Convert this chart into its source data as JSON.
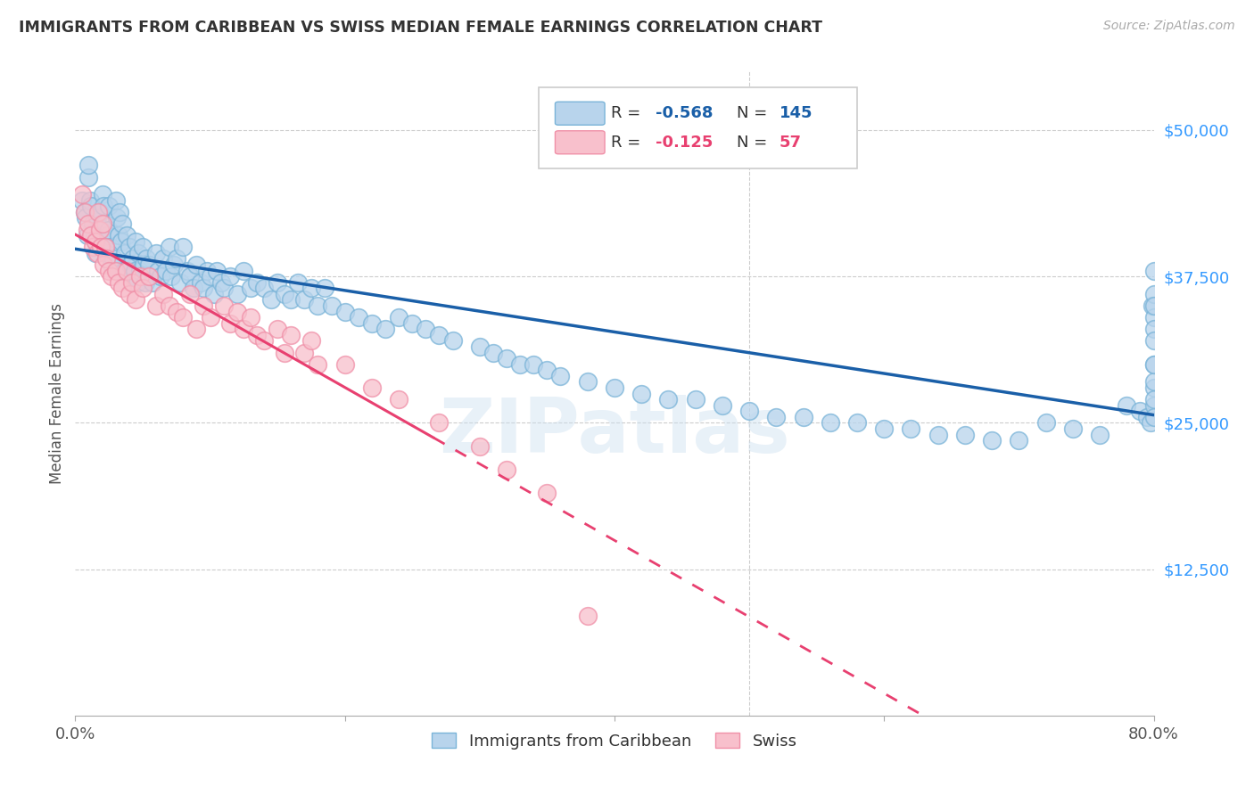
{
  "title": "IMMIGRANTS FROM CARIBBEAN VS SWISS MEDIAN FEMALE EARNINGS CORRELATION CHART",
  "source": "Source: ZipAtlas.com",
  "ylabel": "Median Female Earnings",
  "yticks": [
    0,
    12500,
    25000,
    37500,
    50000
  ],
  "ytick_labels": [
    "",
    "$12,500",
    "$25,000",
    "$37,500",
    "$50,000"
  ],
  "legend_label1": "Immigrants from Caribbean",
  "legend_label2": "Swiss",
  "blue_color": "#7ab4d8",
  "blue_fill": "#b8d4ec",
  "pink_color": "#f090a8",
  "pink_fill": "#f8c0cc",
  "line_blue": "#1a5fa8",
  "line_pink": "#e84070",
  "title_color": "#333333",
  "axis_label_color": "#3399ff",
  "watermark": "ZIPatlas",
  "xmin": 0.0,
  "xmax": 0.8,
  "ymin": 0,
  "ymax": 55000,
  "blue_R": "-0.568",
  "blue_N": "145",
  "pink_R": "-0.125",
  "pink_N": "57",
  "blue_scatter_x": [
    0.005,
    0.007,
    0.008,
    0.009,
    0.01,
    0.01,
    0.011,
    0.012,
    0.013,
    0.014,
    0.015,
    0.015,
    0.016,
    0.017,
    0.018,
    0.019,
    0.02,
    0.02,
    0.021,
    0.022,
    0.022,
    0.023,
    0.024,
    0.025,
    0.025,
    0.026,
    0.027,
    0.028,
    0.03,
    0.031,
    0.032,
    0.033,
    0.034,
    0.035,
    0.036,
    0.037,
    0.038,
    0.04,
    0.041,
    0.042,
    0.043,
    0.044,
    0.045,
    0.046,
    0.047,
    0.048,
    0.05,
    0.051,
    0.052,
    0.053,
    0.055,
    0.057,
    0.06,
    0.061,
    0.063,
    0.065,
    0.067,
    0.07,
    0.071,
    0.073,
    0.075,
    0.078,
    0.08,
    0.083,
    0.085,
    0.088,
    0.09,
    0.093,
    0.095,
    0.098,
    0.1,
    0.103,
    0.105,
    0.108,
    0.11,
    0.115,
    0.12,
    0.125,
    0.13,
    0.135,
    0.14,
    0.145,
    0.15,
    0.155,
    0.16,
    0.165,
    0.17,
    0.175,
    0.18,
    0.185,
    0.19,
    0.2,
    0.21,
    0.22,
    0.23,
    0.24,
    0.25,
    0.26,
    0.27,
    0.28,
    0.3,
    0.31,
    0.32,
    0.33,
    0.34,
    0.35,
    0.36,
    0.38,
    0.4,
    0.42,
    0.44,
    0.46,
    0.48,
    0.5,
    0.52,
    0.54,
    0.56,
    0.58,
    0.6,
    0.62,
    0.64,
    0.66,
    0.68,
    0.7,
    0.72,
    0.74,
    0.76,
    0.78,
    0.79,
    0.795,
    0.798,
    0.799,
    0.8,
    0.8,
    0.8,
    0.8,
    0.8,
    0.8,
    0.8,
    0.8,
    0.8,
    0.8,
    0.8,
    0.8,
    0.8
  ],
  "blue_scatter_y": [
    44000,
    43000,
    42500,
    41000,
    46000,
    47000,
    44000,
    43500,
    42000,
    41000,
    40500,
    39500,
    42500,
    41500,
    43000,
    40000,
    44500,
    41000,
    43500,
    42000,
    40000,
    39500,
    41000,
    43500,
    41500,
    40000,
    38500,
    39000,
    44000,
    42500,
    41000,
    43000,
    40500,
    42000,
    38000,
    39500,
    41000,
    40000,
    38500,
    37500,
    39000,
    38000,
    40500,
    37000,
    39500,
    38000,
    40000,
    38500,
    37000,
    39000,
    38500,
    37000,
    39500,
    38000,
    37500,
    39000,
    38000,
    40000,
    37500,
    38500,
    39000,
    37000,
    40000,
    38000,
    37500,
    36500,
    38500,
    37000,
    36500,
    38000,
    37500,
    36000,
    38000,
    37000,
    36500,
    37500,
    36000,
    38000,
    36500,
    37000,
    36500,
    35500,
    37000,
    36000,
    35500,
    37000,
    35500,
    36500,
    35000,
    36500,
    35000,
    34500,
    34000,
    33500,
    33000,
    34000,
    33500,
    33000,
    32500,
    32000,
    31500,
    31000,
    30500,
    30000,
    30000,
    29500,
    29000,
    28500,
    28000,
    27500,
    27000,
    27000,
    26500,
    26000,
    25500,
    25500,
    25000,
    25000,
    24500,
    24500,
    24000,
    24000,
    23500,
    23500,
    25000,
    24500,
    24000,
    26500,
    26000,
    25500,
    25000,
    35000,
    36000,
    34000,
    30000,
    28000,
    26500,
    25500,
    27000,
    28500,
    30000,
    35000,
    38000,
    33000,
    32000
  ],
  "pink_scatter_x": [
    0.005,
    0.007,
    0.009,
    0.01,
    0.012,
    0.013,
    0.015,
    0.016,
    0.017,
    0.018,
    0.019,
    0.02,
    0.021,
    0.022,
    0.023,
    0.025,
    0.027,
    0.03,
    0.032,
    0.035,
    0.038,
    0.04,
    0.042,
    0.045,
    0.048,
    0.05,
    0.055,
    0.06,
    0.065,
    0.07,
    0.075,
    0.08,
    0.085,
    0.09,
    0.095,
    0.1,
    0.11,
    0.115,
    0.12,
    0.125,
    0.13,
    0.135,
    0.14,
    0.15,
    0.155,
    0.16,
    0.17,
    0.175,
    0.18,
    0.2,
    0.22,
    0.24,
    0.27,
    0.3,
    0.32,
    0.35,
    0.38
  ],
  "pink_scatter_y": [
    44500,
    43000,
    41500,
    42000,
    41000,
    40000,
    40500,
    39500,
    43000,
    41500,
    40000,
    42000,
    38500,
    40000,
    39000,
    38000,
    37500,
    38000,
    37000,
    36500,
    38000,
    36000,
    37000,
    35500,
    37500,
    36500,
    37500,
    35000,
    36000,
    35000,
    34500,
    34000,
    36000,
    33000,
    35000,
    34000,
    35000,
    33500,
    34500,
    33000,
    34000,
    32500,
    32000,
    33000,
    31000,
    32500,
    31000,
    32000,
    30000,
    30000,
    28000,
    27000,
    25000,
    23000,
    21000,
    19000,
    8500
  ]
}
